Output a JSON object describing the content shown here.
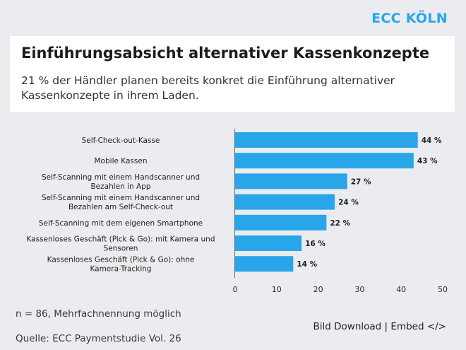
{
  "brand": "ECC KÖLN",
  "header": {
    "title": "Einführungsabsicht alternativer Kassenkonzepte",
    "subtitle": "21 % der Händler planen bereits konkret die Einführung alternativer Kassenkonzepte in ihrem Laden."
  },
  "chart_data": {
    "type": "bar",
    "orientation": "horizontal",
    "categories": [
      [
        "Self-Check-out-Kasse"
      ],
      [
        "Mobile Kassen"
      ],
      [
        "Self-Scanning mit einem Handscanner und",
        "Bezahlen in App"
      ],
      [
        "Self-Scanning mit einem Handscanner und",
        "Bezahlen am Self-Check-out"
      ],
      [
        "Self-Scanning mit dem eigenen Smartphone"
      ],
      [
        "Kassenloses Geschäft (Pick & Go): mit Kamera und",
        "Sensoren"
      ],
      [
        "Kassenloses Geschäft (Pick & Go): ohne",
        "Kamera-Tracking"
      ]
    ],
    "values": [
      44,
      43,
      27,
      24,
      22,
      16,
      14
    ],
    "value_labels": [
      "44 %",
      "43 %",
      "27 %",
      "24 %",
      "22 %",
      "16 %",
      "14 %"
    ],
    "xlim": [
      0,
      50
    ],
    "xticks": [
      0,
      10,
      20,
      30,
      40,
      50
    ],
    "xtick_labels": [
      "0",
      "10",
      "20",
      "30",
      "40",
      "50"
    ],
    "bar_color": "#29a5ea",
    "unit": "%",
    "grid": false
  },
  "footer": {
    "note": "n = 86, Mehrfachnennung möglich",
    "source": "Quelle: ECC Paymentstudie Vol. 26",
    "download_label": "Bild Download",
    "separator": "|",
    "embed_label": "Embed </>"
  }
}
